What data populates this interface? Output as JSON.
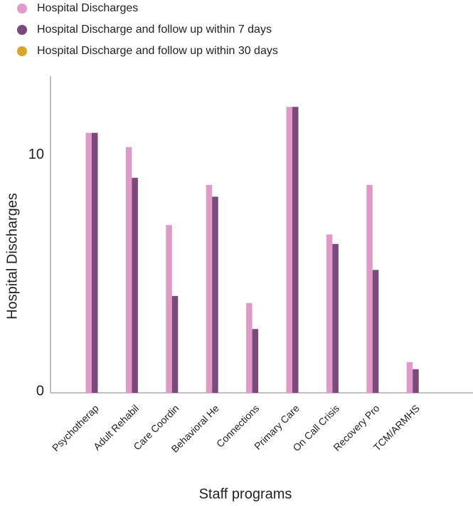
{
  "chart_data": {
    "type": "bar",
    "x_label": "Staff programs",
    "y_label": "Hospital Discharges",
    "categories": [
      "Psychotherap",
      "Adult Rehabil",
      "Care Coordin",
      "Behavioral He",
      "Connections",
      "Primary Care",
      "On Call Crisis",
      "Recovery Pro",
      "TCM/ARMHS"
    ],
    "series": [
      {
        "name": "Hospital Discharges",
        "color": "#e09ac8",
        "values": [
          11,
          10.4,
          7.1,
          8.8,
          3.8,
          12.1,
          6.7,
          8.8,
          1.3
        ]
      },
      {
        "name": "Hospital Discharge and follow up within 7 days",
        "color": "#7b4a7a",
        "values": [
          11,
          9.1,
          4.1,
          8.3,
          2.7,
          12.1,
          6.3,
          5.2,
          1.0
        ]
      },
      {
        "name": "Hospital Discharge and follow up within 30 days",
        "color": "#d4a72c",
        "values": [
          0,
          0,
          0,
          0,
          0,
          0,
          0,
          0,
          0
        ]
      }
    ],
    "ylim": [
      0,
      13.4
    ],
    "yticks": [
      0,
      10
    ],
    "grid": false
  }
}
